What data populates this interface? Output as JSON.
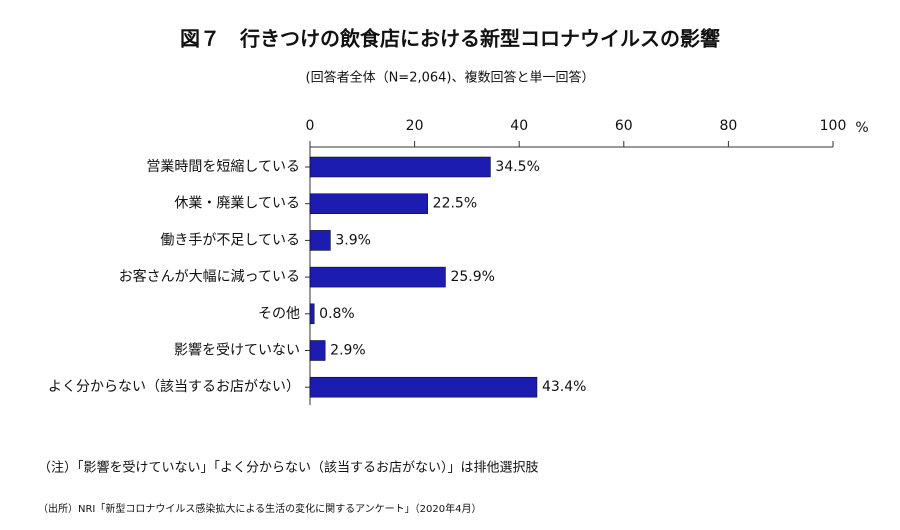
{
  "chart_data": {
    "type": "bar",
    "orientation": "horizontal",
    "title": "図７　行きつけの飲食店における新型コロナウイルスの影響",
    "subtitle": "(回答者全体（N=2,064)、複数回答と単一回答）",
    "xlabel": "%",
    "categories": [
      "営業時間を短縮している",
      "休業・廃業している",
      "働き手が不足している",
      "お客さんが大幅に減っている",
      "その他",
      "影響を受けていない",
      "よく分からない（該当するお店がない）"
    ],
    "values": [
      34.5,
      22.5,
      3.9,
      25.9,
      0.8,
      2.9,
      43.4
    ],
    "value_labels": [
      "34.5%",
      "22.5%",
      "3.9%",
      "25.9%",
      "0.8%",
      "2.9%",
      "43.4%"
    ],
    "color": "#1c1cb0",
    "xlim": [
      0,
      100
    ],
    "xticks": [
      0,
      20,
      40,
      60,
      80,
      100
    ],
    "note": "（注）「影響を受けていない」「よく分からない（該当するお店がない）」は排他選択肢",
    "source": "（出所）NRI「新型コロナウイルス感染拡大による生活の変化に関するアンケート」（2020年4月）"
  }
}
